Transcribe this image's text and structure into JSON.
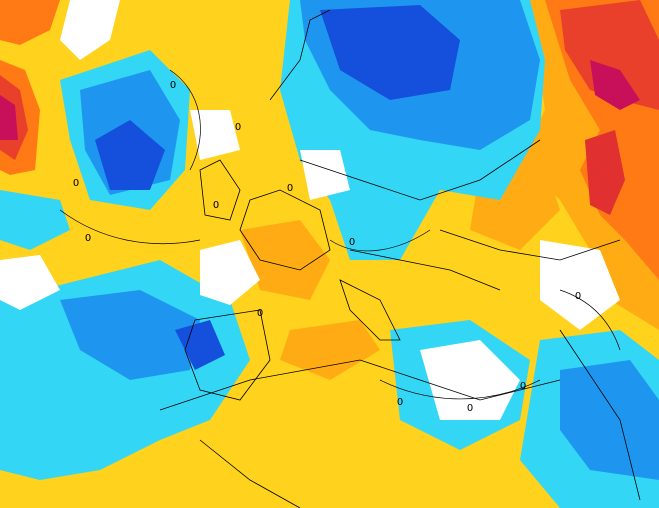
{
  "map": {
    "contour_labels": [
      "0",
      "0",
      "0",
      "0",
      "0",
      "0",
      "0",
      "0",
      "0",
      "0",
      "0",
      "0"
    ]
  }
}
